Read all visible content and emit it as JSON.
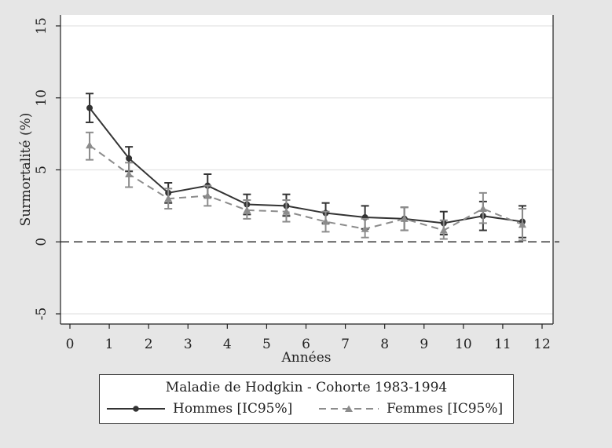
{
  "chart_data": {
    "type": "line",
    "title": "",
    "xlabel": "Années",
    "ylabel": "Surmortalité (%)",
    "xlim": [
      0,
      12
    ],
    "ylim": [
      -5,
      15
    ],
    "xticks": [
      "0",
      "1",
      "2",
      "3",
      "4",
      "5",
      "6",
      "7",
      "8",
      "9",
      "10",
      "11",
      "12"
    ],
    "yticks": [
      "-5",
      "0",
      "5",
      "10",
      "15"
    ],
    "grid": true,
    "reference_line": 0,
    "legend_title": "Maladie de Hodgkin - Cohorte 1983-1994",
    "legend_position": "bottom",
    "series": [
      {
        "name": "Hommes [IC95%]",
        "color": "#333333",
        "line_style": "solid",
        "marker": "circle",
        "x": [
          0.5,
          1.5,
          2.5,
          3.5,
          4.5,
          5.5,
          6.5,
          7.5,
          8.5,
          9.5,
          10.5,
          11.5
        ],
        "y": [
          9.3,
          5.8,
          3.4,
          3.9,
          2.6,
          2.5,
          2.0,
          1.7,
          1.6,
          1.3,
          1.8,
          1.4
        ],
        "ci_low": [
          8.3,
          4.9,
          2.7,
          3.1,
          1.9,
          1.8,
          1.3,
          0.9,
          0.8,
          0.5,
          0.8,
          0.3
        ],
        "ci_high": [
          10.3,
          6.6,
          4.1,
          4.7,
          3.3,
          3.3,
          2.7,
          2.5,
          2.4,
          2.1,
          2.8,
          2.5
        ]
      },
      {
        "name": "Femmes [IC95%]",
        "color": "#8c8c8c",
        "line_style": "dashed",
        "marker": "triangle",
        "x": [
          0.5,
          1.5,
          2.5,
          3.5,
          4.5,
          5.5,
          6.5,
          7.5,
          8.5,
          9.5,
          10.5,
          11.5
        ],
        "y": [
          6.7,
          4.7,
          3.0,
          3.2,
          2.2,
          2.1,
          1.4,
          0.9,
          1.6,
          0.8,
          2.3,
          1.2
        ],
        "ci_low": [
          5.7,
          3.8,
          2.3,
          2.5,
          1.6,
          1.4,
          0.7,
          0.3,
          0.8,
          0.2,
          1.3,
          0.1
        ],
        "ci_high": [
          7.6,
          5.5,
          3.7,
          3.9,
          2.9,
          2.9,
          2.1,
          1.6,
          2.4,
          1.5,
          3.4,
          2.3
        ]
      }
    ]
  }
}
